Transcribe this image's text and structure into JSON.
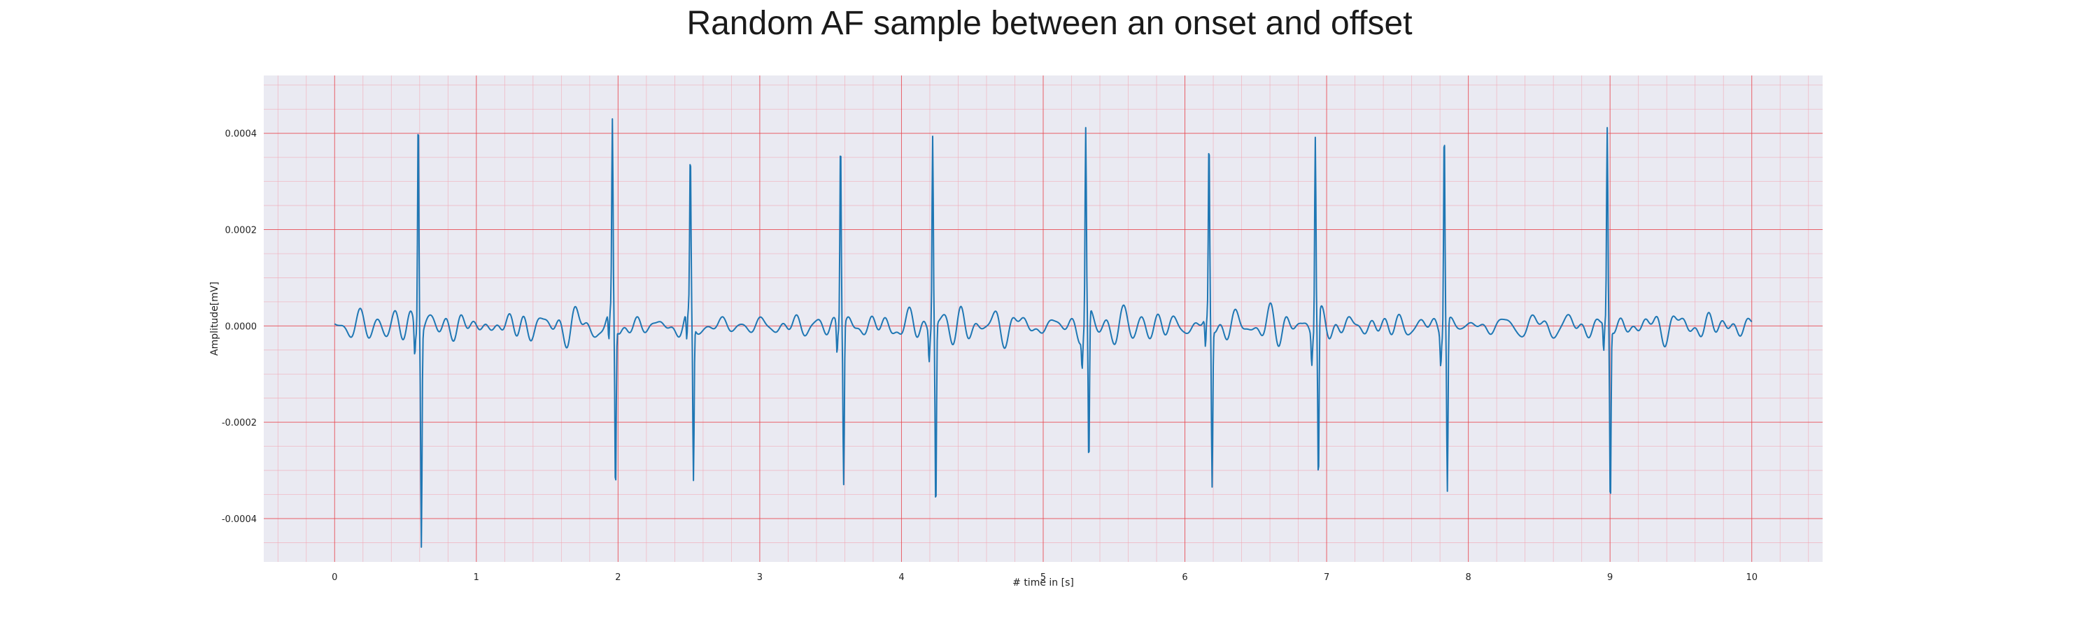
{
  "chart_data": {
    "type": "line",
    "title": "Random AF sample between an onset and offset",
    "xlabel": "# time in [s]",
    "ylabel": "Amplitude[mV]",
    "xlim": [
      -0.5,
      10.5
    ],
    "ylim": [
      -0.00049,
      0.00052
    ],
    "x_ticks": [
      0,
      1,
      2,
      3,
      4,
      5,
      6,
      7,
      8,
      9,
      10
    ],
    "x_tick_labels": [
      "0",
      "1",
      "2",
      "3",
      "4",
      "5",
      "6",
      "7",
      "8",
      "9",
      "10"
    ],
    "y_ticks": [
      -0.0004,
      -0.0002,
      0.0,
      0.0002,
      0.0004
    ],
    "y_tick_labels": [
      "-0.0004",
      "-0.0002",
      "0.0000",
      "0.0002",
      "0.0004"
    ],
    "grid": true,
    "series": [
      {
        "color": "#1f77b4",
        "x_start": 0,
        "x_end": 10,
        "peaks": [
          {
            "x": 0.59,
            "max": 0.000475,
            "min": -0.00044
          },
          {
            "x": 1.96,
            "max": 0.000405,
            "min": -0.000355
          },
          {
            "x": 2.51,
            "max": 0.00034,
            "min": -0.00033
          },
          {
            "x": 3.57,
            "max": 0.00041,
            "min": -0.00033
          },
          {
            "x": 4.22,
            "max": 0.000412,
            "min": -0.000395
          },
          {
            "x": 5.3,
            "max": 0.000408,
            "min": -0.00033
          },
          {
            "x": 6.17,
            "max": 0.00038,
            "min": -0.000335
          },
          {
            "x": 6.92,
            "max": 0.000415,
            "min": -0.00035
          },
          {
            "x": 7.83,
            "max": 0.000435,
            "min": -0.000355
          },
          {
            "x": 8.98,
            "max": 0.000408,
            "min": -0.00038
          }
        ]
      }
    ]
  }
}
